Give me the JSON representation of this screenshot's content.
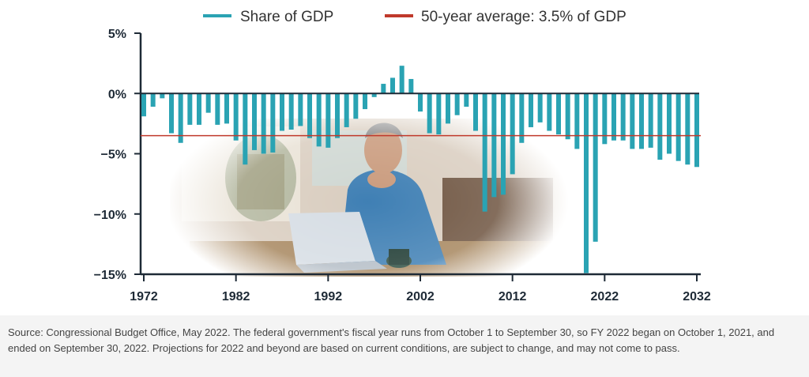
{
  "chart_data": {
    "type": "bar",
    "legend": [
      {
        "label": "Share of GDP",
        "color": "#2aa3b3"
      },
      {
        "label": "50-year average: 3.5% of GDP",
        "color": "#c0392b"
      }
    ],
    "x": [
      1972,
      1973,
      1974,
      1975,
      1976,
      1977,
      1978,
      1979,
      1980,
      1981,
      1982,
      1983,
      1984,
      1985,
      1986,
      1987,
      1988,
      1989,
      1990,
      1991,
      1992,
      1993,
      1994,
      1995,
      1996,
      1997,
      1998,
      1999,
      2000,
      2001,
      2002,
      2003,
      2004,
      2005,
      2006,
      2007,
      2008,
      2009,
      2010,
      2011,
      2012,
      2013,
      2014,
      2015,
      2016,
      2017,
      2018,
      2019,
      2020,
      2021,
      2022,
      2023,
      2024,
      2025,
      2026,
      2027,
      2028,
      2029,
      2030,
      2031,
      2032
    ],
    "series": [
      {
        "values": [
          -1.9,
          -1.1,
          -0.4,
          -3.3,
          -4.1,
          -2.6,
          -2.6,
          -1.6,
          -2.6,
          -2.5,
          -3.9,
          -5.9,
          -4.7,
          -5.0,
          -4.9,
          -3.1,
          -3.0,
          -2.7,
          -3.7,
          -4.4,
          -4.5,
          -3.7,
          -2.8,
          -2.1,
          -1.3,
          -0.3,
          0.8,
          1.3,
          2.3,
          1.2,
          -1.5,
          -3.3,
          -3.4,
          -2.5,
          -1.8,
          -1.1,
          -3.1,
          -9.8,
          -8.6,
          -8.4,
          -6.7,
          -4.1,
          -2.8,
          -2.4,
          -3.1,
          -3.4,
          -3.8,
          -4.6,
          -14.9,
          -12.3,
          -4.2,
          -3.9,
          -3.9,
          -4.6,
          -4.6,
          -4.5,
          -5.5,
          -5.0,
          -5.6,
          -5.9,
          -6.1
        ],
        "color": "#2aa3b3"
      }
    ],
    "average": -3.5,
    "average_color": "#c0392b",
    "ylim": [
      -15,
      5
    ],
    "yticks": [
      5,
      0,
      -5,
      -10,
      -15
    ],
    "ytick_labels": [
      "5%",
      "0%",
      "−5%",
      "−10%",
      "−15%"
    ],
    "xticks": [
      1972,
      1982,
      1992,
      2002,
      2012,
      2022,
      2032
    ],
    "xtick_labels": [
      "1972",
      "1982",
      "1992",
      "2002",
      "2012",
      "2022",
      "2032"
    ]
  },
  "footer": {
    "source": "Source: Congressional Budget Office, May 2022. The federal government's fiscal year runs from October 1 to September 30, so FY 2022 began on October 1, 2021, and ended on September 30, 2022. Projections for 2022 and beyond are based on current conditions, are subject to change, and may not come to pass."
  },
  "photo": {
    "icon": "person-at-laptop-photo"
  }
}
